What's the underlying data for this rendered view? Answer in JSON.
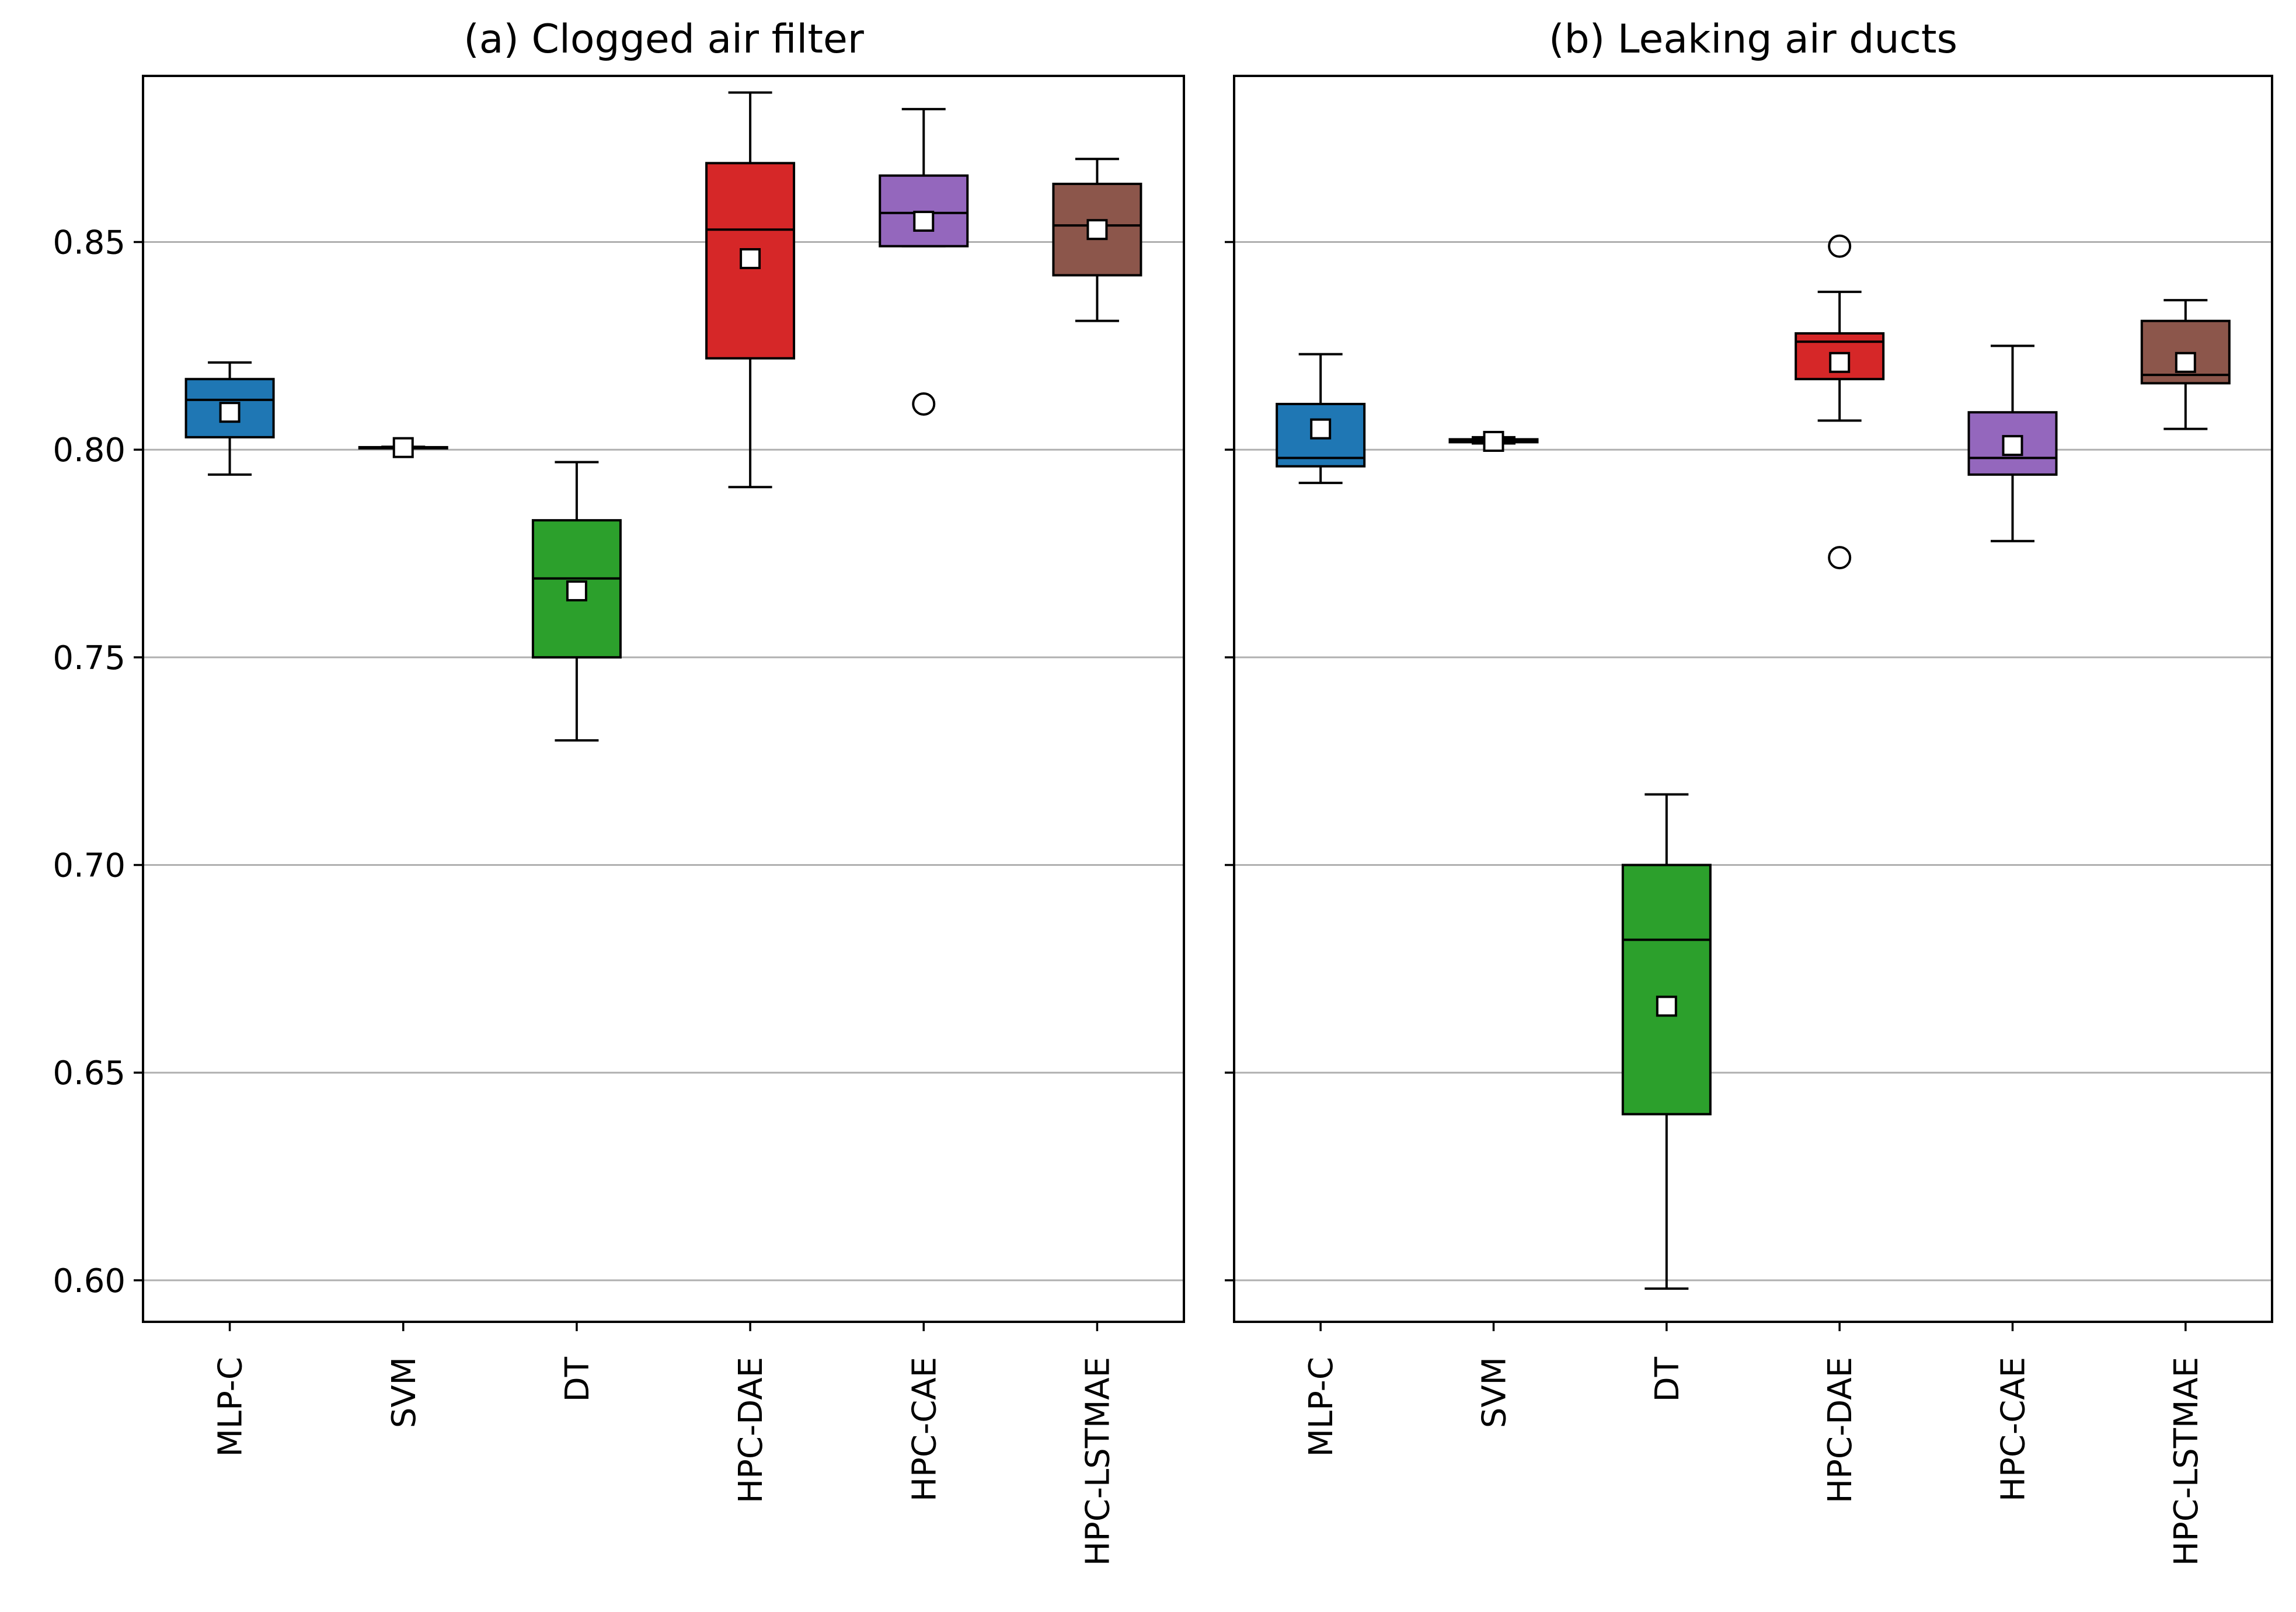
{
  "figure": {
    "panels_shared_y": true
  },
  "chart_data": [
    {
      "type": "boxplot",
      "title": "(a) Clogged air filter",
      "xlabel": "",
      "ylabel": "",
      "ylim": [
        0.59,
        0.89
      ],
      "yticks": [
        0.6,
        0.65,
        0.7,
        0.75,
        0.8,
        0.85
      ],
      "ytick_labels": [
        "0.60",
        "0.65",
        "0.70",
        "0.75",
        "0.80",
        "0.85"
      ],
      "grid": "horizontal",
      "categories": [
        "MLP-C",
        "SVM",
        "DT",
        "HPC-DAE",
        "HPC-CAE",
        "HPC-LSTMAE"
      ],
      "boxes": [
        {
          "label": "MLP-C",
          "color": "#1f77b4",
          "whislo": 0.794,
          "q1": 0.803,
          "median": 0.812,
          "q3": 0.817,
          "whishi": 0.821,
          "mean": 0.809,
          "fliers": []
        },
        {
          "label": "SVM",
          "color": "#ff7f0e",
          "whislo": 0.8005,
          "q1": 0.8005,
          "median": 0.8005,
          "q3": 0.8006,
          "whishi": 0.8007,
          "mean": 0.8005,
          "fliers": []
        },
        {
          "label": "DT",
          "color": "#2ca02c",
          "whislo": 0.73,
          "q1": 0.75,
          "median": 0.769,
          "q3": 0.783,
          "whishi": 0.797,
          "mean": 0.766,
          "fliers": []
        },
        {
          "label": "HPC-DAE",
          "color": "#d62728",
          "whislo": 0.791,
          "q1": 0.822,
          "median": 0.853,
          "q3": 0.869,
          "whishi": 0.886,
          "mean": 0.846,
          "fliers": []
        },
        {
          "label": "HPC-CAE",
          "color": "#9467bd",
          "whislo": 0.849,
          "q1": 0.849,
          "median": 0.857,
          "q3": 0.866,
          "whishi": 0.882,
          "mean": 0.855,
          "fliers": [
            0.811
          ]
        },
        {
          "label": "HPC-LSTMAE",
          "color": "#8c564b",
          "whislo": 0.831,
          "q1": 0.842,
          "median": 0.854,
          "q3": 0.864,
          "whishi": 0.87,
          "mean": 0.853,
          "fliers": []
        }
      ]
    },
    {
      "type": "boxplot",
      "title": "(b) Leaking air ducts",
      "xlabel": "",
      "ylabel": "",
      "ylim": [
        0.59,
        0.89
      ],
      "yticks": [
        0.6,
        0.65,
        0.7,
        0.75,
        0.8,
        0.85
      ],
      "ytick_labels": [
        "",
        "",
        "",
        "",
        "",
        ""
      ],
      "grid": "horizontal",
      "categories": [
        "MLP-C",
        "SVM",
        "DT",
        "HPC-DAE",
        "HPC-CAE",
        "HPC-LSTMAE"
      ],
      "boxes": [
        {
          "label": "MLP-C",
          "color": "#1f77b4",
          "whislo": 0.792,
          "q1": 0.796,
          "median": 0.798,
          "q3": 0.811,
          "whishi": 0.823,
          "mean": 0.805,
          "fliers": []
        },
        {
          "label": "SVM",
          "color": "#ff7f0e",
          "whislo": 0.8015,
          "q1": 0.8018,
          "median": 0.802,
          "q3": 0.8025,
          "whishi": 0.803,
          "mean": 0.802,
          "fliers": []
        },
        {
          "label": "DT",
          "color": "#2ca02c",
          "whislo": 0.598,
          "q1": 0.64,
          "median": 0.682,
          "q3": 0.7,
          "whishi": 0.717,
          "mean": 0.666,
          "fliers": []
        },
        {
          "label": "HPC-DAE",
          "color": "#d62728",
          "whislo": 0.807,
          "q1": 0.817,
          "median": 0.826,
          "q3": 0.828,
          "whishi": 0.838,
          "mean": 0.821,
          "fliers": [
            0.849,
            0.774
          ]
        },
        {
          "label": "HPC-CAE",
          "color": "#9467bd",
          "whislo": 0.778,
          "q1": 0.794,
          "median": 0.798,
          "q3": 0.809,
          "whishi": 0.825,
          "mean": 0.801,
          "fliers": []
        },
        {
          "label": "HPC-LSTMAE",
          "color": "#8c564b",
          "whislo": 0.805,
          "q1": 0.816,
          "median": 0.818,
          "q3": 0.831,
          "whishi": 0.836,
          "mean": 0.821,
          "fliers": []
        }
      ]
    }
  ]
}
